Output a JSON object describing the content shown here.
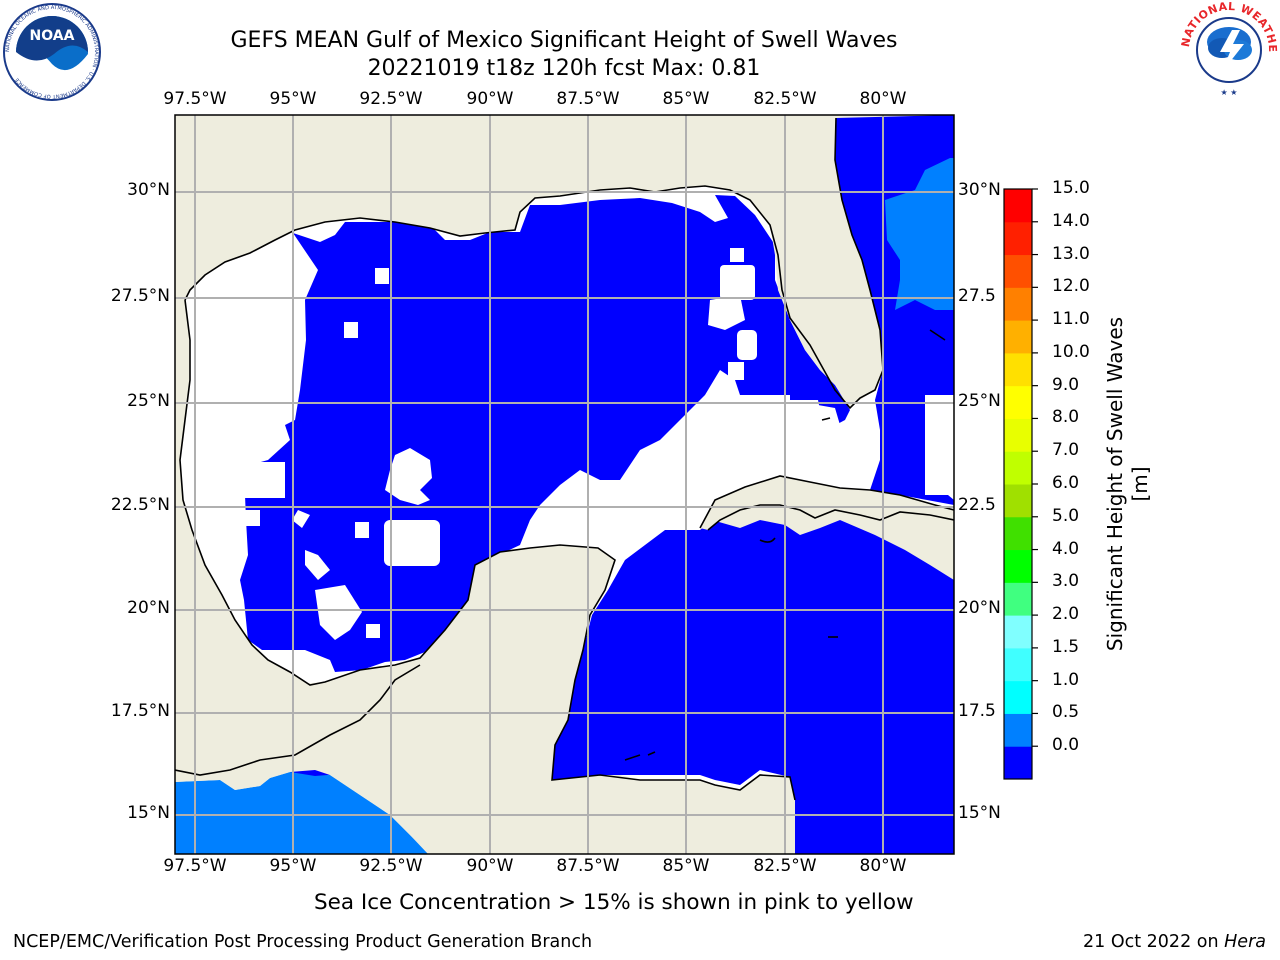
{
  "header": {
    "title_line1": "GEFS MEAN Gulf of Mexico Significant Height of Swell Waves",
    "title_line2": "20221019 t18z 120h fcst   Max: 0.81"
  },
  "logos": {
    "left_text": "NOAA",
    "left_ring": "NATIONAL OCEANIC AND ATMOSPHERIC ADMINISTRATION · U.S. DEPARTMENT OF COMMERCE",
    "right_ring": "NATIONAL WEATHER SERVICE"
  },
  "map": {
    "lon_labels": [
      "97.5°W",
      "95°W",
      "92.5°W",
      "90°W",
      "87.5°W",
      "85°W",
      "82.5°W",
      "80°W"
    ],
    "lat_labels_left": [
      "30°N",
      "27.5°N",
      "25°N",
      "22.5°N",
      "20°N",
      "17.5°N",
      "15°N"
    ],
    "lat_labels_right": [
      "30°N",
      "27.5",
      "25°N",
      "22.5",
      "20°N",
      "17.5",
      "15°N"
    ],
    "colors": {
      "land": "#eeedde",
      "water_low": "#0000ff",
      "water_mid": "#0080ff",
      "water_blank": "#ffffff",
      "grid": "#b0b0b0",
      "coast": "#000000"
    }
  },
  "colorbar": {
    "title": "Significant Height of Swell Waves [m]",
    "tick_labels": [
      "15.0",
      "14.0",
      "13.0",
      "12.0",
      "11.0",
      "10.0",
      "9.0",
      "8.0",
      "7.0",
      "6.0",
      "5.0",
      "4.0",
      "3.0",
      "2.0",
      "1.5",
      "1.0",
      "0.5",
      "0.0"
    ],
    "colors_bottom_to_top": [
      "#0000ff",
      "#0080ff",
      "#00ffff",
      "#40ffff",
      "#80ffff",
      "#40ff80",
      "#00ff00",
      "#40e000",
      "#a0e000",
      "#c0ff00",
      "#e8ff00",
      "#ffff00",
      "#ffe000",
      "#ffb000",
      "#ff8000",
      "#ff5000",
      "#ff2000",
      "#ff0000"
    ]
  },
  "subtitle": "Sea Ice Concentration > 15% is shown in pink to yellow",
  "footer": {
    "left": "NCEP/EMC/Verification Post Processing Product Generation Branch",
    "right_date": "21 Oct 2022 on ",
    "right_machine": "Hera"
  }
}
